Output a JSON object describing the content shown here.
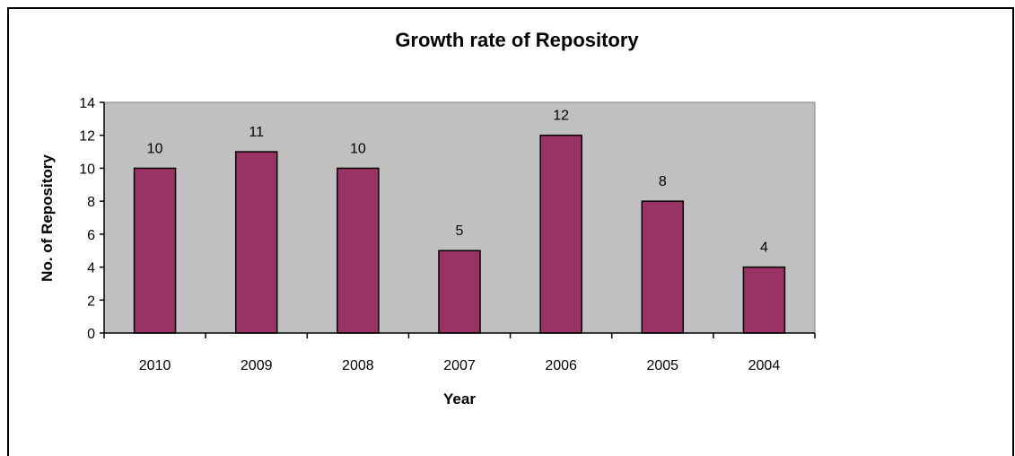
{
  "chart_data": {
    "type": "bar",
    "title": "Growth rate of Repository",
    "xlabel": "Year",
    "ylabel": "No. of Repository",
    "categories": [
      "2010",
      "2009",
      "2008",
      "2007",
      "2006",
      "2005",
      "2004"
    ],
    "values": [
      10,
      11,
      10,
      5,
      12,
      8,
      4
    ],
    "ylim": [
      0,
      14
    ],
    "yticks": [
      0,
      2,
      4,
      6,
      8,
      10,
      12,
      14
    ],
    "data_labels": true,
    "grid": false,
    "legend": "none",
    "colors": {
      "bar_fill": "#993366",
      "bar_stroke": "#000000",
      "plot_background": "#c0c0c0",
      "plot_border": "#808080"
    }
  }
}
